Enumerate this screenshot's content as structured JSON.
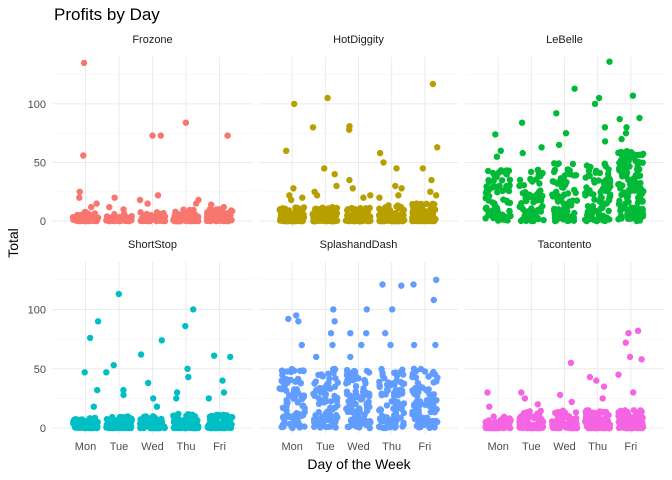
{
  "chart_data": {
    "type": "scatter",
    "title": "Profits by Day",
    "xlabel": "Day of the Week",
    "ylabel": "Total",
    "categories": [
      "Mon",
      "Tue",
      "Wed",
      "Thu",
      "Fri"
    ],
    "ylim": [
      -5,
      140
    ],
    "y_ticks": [
      0,
      50,
      100
    ],
    "grid": true,
    "facets": [
      {
        "name": "Frozone",
        "color": "#F8766D",
        "bulk": [
          {
            "day": "Mon",
            "count": 55,
            "max": 8
          },
          {
            "day": "Tue",
            "count": 45,
            "max": 7
          },
          {
            "day": "Wed",
            "count": 55,
            "max": 8
          },
          {
            "day": "Thu",
            "count": 60,
            "max": 10
          },
          {
            "day": "Fri",
            "count": 70,
            "max": 11
          }
        ],
        "outliers": [
          {
            "day": "Mon",
            "values": [
              135,
              56,
              25,
              20,
              15,
              12
            ]
          },
          {
            "day": "Tue",
            "values": [
              20,
              12,
              10
            ]
          },
          {
            "day": "Wed",
            "values": [
              73,
              73,
              22,
              18,
              15
            ]
          },
          {
            "day": "Thu",
            "values": [
              84,
              18,
              15
            ]
          },
          {
            "day": "Fri",
            "values": [
              73,
              14,
              12
            ]
          }
        ]
      },
      {
        "name": "HotDiggity",
        "color": "#B79F00",
        "bulk": [
          {
            "day": "Mon",
            "count": 90,
            "max": 12
          },
          {
            "day": "Tue",
            "count": 90,
            "max": 12
          },
          {
            "day": "Wed",
            "count": 95,
            "max": 12
          },
          {
            "day": "Thu",
            "count": 100,
            "max": 14
          },
          {
            "day": "Fri",
            "count": 110,
            "max": 15
          }
        ],
        "outliers": [
          {
            "day": "Mon",
            "values": [
              100,
              60,
              28,
              22,
              20,
              18
            ]
          },
          {
            "day": "Tue",
            "values": [
              105,
              80,
              45,
              40,
              30,
              25,
              22
            ]
          },
          {
            "day": "Wed",
            "values": [
              81,
              78,
              35,
              28,
              22,
              20
            ]
          },
          {
            "day": "Thu",
            "values": [
              58,
              50,
              45,
              30,
              28,
              22,
              20
            ]
          },
          {
            "day": "Fri",
            "values": [
              117,
              63,
              45,
              35,
              25,
              22
            ]
          }
        ]
      },
      {
        "name": "LeBelle",
        "color": "#00BA38",
        "bulk": [
          {
            "day": "Mon",
            "count": 70,
            "min": 0,
            "max": 45
          },
          {
            "day": "Tue",
            "count": 70,
            "min": 0,
            "max": 45
          },
          {
            "day": "Wed",
            "count": 85,
            "min": 0,
            "max": 50
          },
          {
            "day": "Thu",
            "count": 85,
            "min": 0,
            "max": 50
          },
          {
            "day": "Fri",
            "count": 130,
            "min": 0,
            "max": 60
          }
        ],
        "outliers": [
          {
            "day": "Mon",
            "values": [
              74,
              60,
              55
            ]
          },
          {
            "day": "Tue",
            "values": [
              84,
              63,
              58
            ]
          },
          {
            "day": "Wed",
            "values": [
              113,
              92,
              75,
              65
            ]
          },
          {
            "day": "Thu",
            "values": [
              136,
              105,
              100,
              80,
              68
            ]
          },
          {
            "day": "Fri",
            "values": [
              107,
              88,
              87,
              80,
              75,
              70
            ]
          }
        ]
      },
      {
        "name": "ShortStop",
        "color": "#00BFC4",
        "bulk": [
          {
            "day": "Mon",
            "count": 75,
            "max": 9
          },
          {
            "day": "Tue",
            "count": 70,
            "max": 10
          },
          {
            "day": "Wed",
            "count": 75,
            "max": 10
          },
          {
            "day": "Thu",
            "count": 80,
            "max": 12
          },
          {
            "day": "Fri",
            "count": 100,
            "max": 12
          }
        ],
        "outliers": [
          {
            "day": "Mon",
            "values": [
              90,
              76,
              47,
              32,
              18
            ]
          },
          {
            "day": "Tue",
            "values": [
              113,
              53,
              47,
              32,
              28
            ]
          },
          {
            "day": "Wed",
            "values": [
              74,
              62,
              38,
              25,
              18
            ]
          },
          {
            "day": "Thu",
            "values": [
              100,
              86,
              50,
              43,
              30,
              25
            ]
          },
          {
            "day": "Fri",
            "values": [
              61,
              60,
              40,
              30,
              25
            ]
          }
        ]
      },
      {
        "name": "SplashandDash",
        "color": "#619CFF",
        "bulk": [
          {
            "day": "Mon",
            "count": 80,
            "min": 0,
            "max": 50
          },
          {
            "day": "Tue",
            "count": 80,
            "min": 0,
            "max": 50
          },
          {
            "day": "Wed",
            "count": 90,
            "min": 0,
            "max": 50
          },
          {
            "day": "Thu",
            "count": 95,
            "min": 0,
            "max": 50
          },
          {
            "day": "Fri",
            "count": 90,
            "min": 0,
            "max": 50
          }
        ],
        "outliers": [
          {
            "day": "Mon",
            "values": [
              95,
              92,
              90,
              70
            ]
          },
          {
            "day": "Tue",
            "values": [
              100,
              90,
              80,
              70,
              60
            ]
          },
          {
            "day": "Wed",
            "values": [
              100,
              80,
              80,
              70,
              60
            ]
          },
          {
            "day": "Thu",
            "values": [
              121,
              120,
              100,
              80,
              70
            ]
          },
          {
            "day": "Fri",
            "values": [
              125,
              121,
              108,
              70,
              70
            ]
          }
        ]
      },
      {
        "name": "Tacontento",
        "color": "#F564E3",
        "bulk": [
          {
            "day": "Mon",
            "count": 65,
            "max": 10
          },
          {
            "day": "Tue",
            "count": 75,
            "max": 15
          },
          {
            "day": "Wed",
            "count": 80,
            "max": 15
          },
          {
            "day": "Thu",
            "count": 90,
            "max": 15
          },
          {
            "day": "Fri",
            "count": 110,
            "max": 15
          }
        ],
        "outliers": [
          {
            "day": "Mon",
            "values": [
              30,
              18
            ]
          },
          {
            "day": "Tue",
            "values": [
              30,
              25,
              20
            ]
          },
          {
            "day": "Wed",
            "values": [
              55,
              28,
              22
            ]
          },
          {
            "day": "Thu",
            "values": [
              43,
              40,
              35,
              25
            ]
          },
          {
            "day": "Fri",
            "values": [
              82,
              80,
              72,
              60,
              58,
              45,
              30
            ]
          }
        ]
      }
    ]
  }
}
